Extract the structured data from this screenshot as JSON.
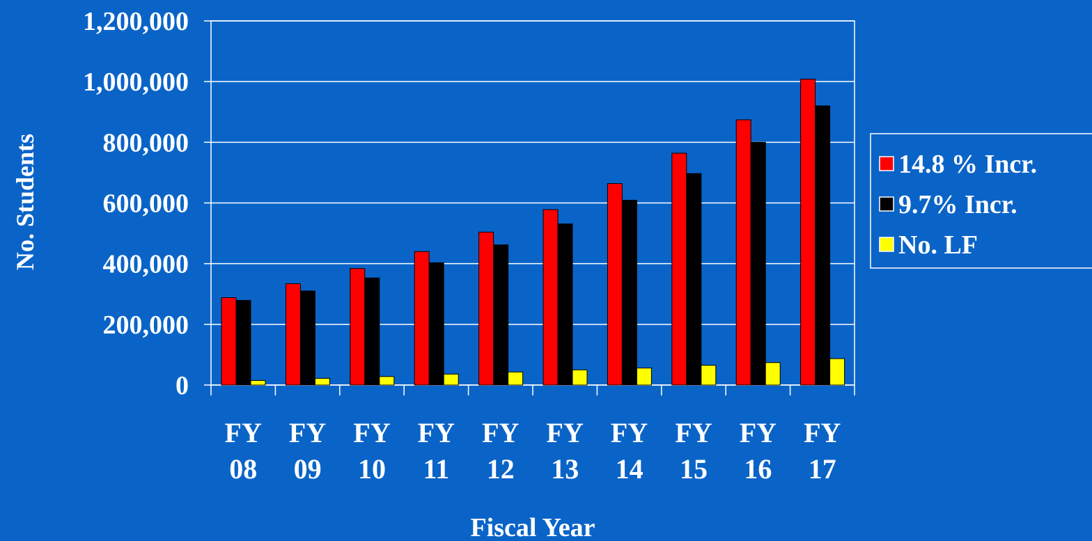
{
  "chart_data": {
    "type": "bar",
    "x_label": "Fiscal Year",
    "y_label": "No. Students",
    "categories": [
      "FY 08",
      "FY 09",
      "FY 10",
      "FY 11",
      "FY 12",
      "FY 13",
      "FY 14",
      "FY 15",
      "FY 16",
      "FY 17"
    ],
    "series": [
      {
        "name": "14.8 % Incr.",
        "color": "#ff0000",
        "values": [
          288000,
          334000,
          384000,
          440000,
          504000,
          578000,
          664000,
          764000,
          874000,
          1008000
        ]
      },
      {
        "name": "9.7% Incr.",
        "color": "#000000",
        "values": [
          279000,
          310000,
          353000,
          403000,
          462000,
          531000,
          609000,
          697000,
          800000,
          920000
        ]
      },
      {
        "name": "No. LF",
        "color": "#ffff00",
        "values": [
          15000,
          22000,
          28000,
          36000,
          43000,
          50000,
          56000,
          65000,
          74000,
          87000
        ]
      }
    ],
    "ylim": [
      0,
      1200000
    ],
    "yticks": [
      0,
      {
        "value": 200000,
        "label": "200,000"
      },
      {
        "value": 400000,
        "label": "400,000"
      },
      {
        "value": 600000,
        "label": "600,000"
      },
      {
        "value": 800000,
        "label": "800,000"
      },
      {
        "value": 1000000,
        "label": "1,000,000"
      },
      {
        "value": 1200000,
        "label": "1,200,000"
      }
    ],
    "grid": true,
    "legend": "right"
  }
}
